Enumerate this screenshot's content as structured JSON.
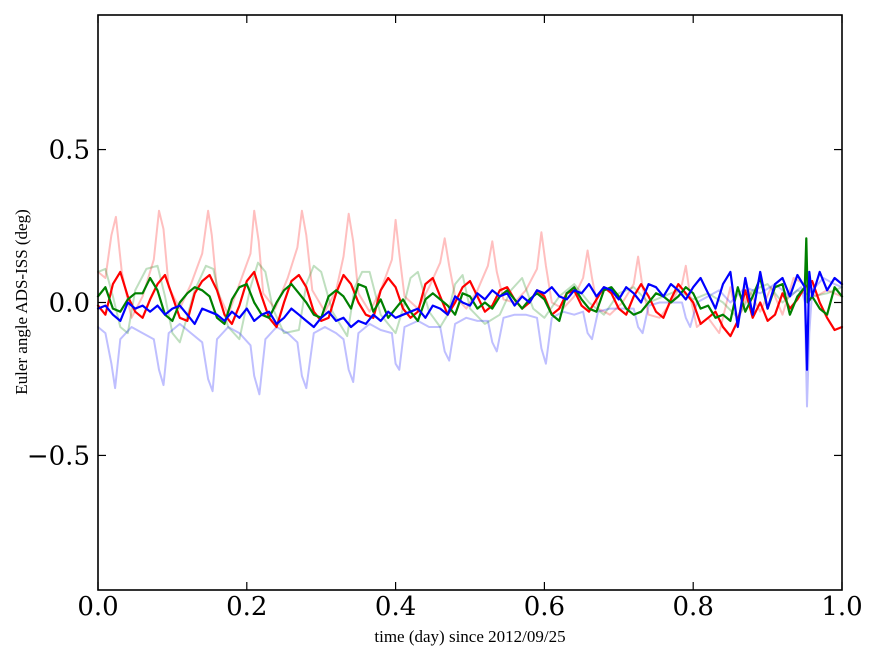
{
  "chart_data": {
    "type": "line",
    "title": "",
    "xlabel": "time (day) since 2012/09/25",
    "ylabel": "Euler angle ADS-ISS (deg)",
    "xlim": [
      0.0,
      1.0
    ],
    "ylim": [
      -0.94,
      0.94
    ],
    "xticks": [
      0.0,
      0.2,
      0.4,
      0.6,
      0.8,
      1.0
    ],
    "xtick_labels": [
      "0.0",
      "0.2",
      "0.4",
      "0.6",
      "0.8",
      "1.0"
    ],
    "yticks": [
      0.5,
      0.0,
      -0.5
    ],
    "ytick_labels": [
      "0.5",
      "0.0",
      "−0.5"
    ],
    "grid": false,
    "legend": "none",
    "series": [
      {
        "color": "#ff0000",
        "opacity": 0.25,
        "x": [
          0.0,
          0.01,
          0.018,
          0.024,
          0.032,
          0.045,
          0.06,
          0.075,
          0.082,
          0.088,
          0.095,
          0.11,
          0.125,
          0.14,
          0.148,
          0.153,
          0.16,
          0.175,
          0.19,
          0.205,
          0.21,
          0.216,
          0.222,
          0.238,
          0.255,
          0.268,
          0.274,
          0.28,
          0.288,
          0.305,
          0.32,
          0.33,
          0.337,
          0.343,
          0.35,
          0.365,
          0.38,
          0.395,
          0.4,
          0.405,
          0.412,
          0.43,
          0.445,
          0.46,
          0.466,
          0.472,
          0.48,
          0.495,
          0.51,
          0.524,
          0.53,
          0.536,
          0.545,
          0.56,
          0.575,
          0.59,
          0.596,
          0.602,
          0.61,
          0.625,
          0.64,
          0.652,
          0.658,
          0.664,
          0.672,
          0.688,
          0.705,
          0.72,
          0.726,
          0.732,
          0.74,
          0.755,
          0.77,
          0.785,
          0.79,
          0.796,
          0.805,
          0.82,
          0.835,
          0.85,
          0.86,
          0.875,
          0.89,
          0.905,
          0.92,
          0.935,
          0.95,
          0.955,
          0.965,
          0.98,
          1.0
        ],
        "y": [
          0.1,
          0.08,
          0.22,
          0.28,
          0.1,
          -0.05,
          0.02,
          0.14,
          0.3,
          0.24,
          0.05,
          -0.02,
          0.06,
          0.16,
          0.3,
          0.22,
          0.04,
          -0.04,
          0.06,
          0.16,
          0.3,
          0.2,
          0.03,
          -0.02,
          0.08,
          0.18,
          0.3,
          0.22,
          0.04,
          -0.03,
          0.04,
          0.15,
          0.29,
          0.2,
          0.03,
          -0.03,
          0.04,
          0.14,
          0.27,
          0.16,
          0.02,
          -0.02,
          0.05,
          0.13,
          0.21,
          0.12,
          0.02,
          -0.02,
          0.04,
          0.12,
          0.2,
          0.1,
          0.01,
          0.0,
          0.04,
          0.11,
          0.23,
          0.12,
          0.0,
          -0.02,
          0.02,
          0.08,
          0.17,
          0.08,
          -0.02,
          -0.04,
          0.0,
          0.06,
          0.15,
          0.05,
          -0.04,
          -0.05,
          0.0,
          0.06,
          0.12,
          0.02,
          -0.08,
          -0.05,
          -0.1,
          0.05,
          -0.06,
          0.04,
          -0.03,
          0.05,
          -0.04,
          0.08,
          0.06,
          0.04,
          0.02,
          0.04,
          0.02
        ]
      },
      {
        "color": "#008000",
        "opacity": 0.25,
        "x": [
          0.0,
          0.01,
          0.02,
          0.03,
          0.04,
          0.05,
          0.065,
          0.08,
          0.09,
          0.1,
          0.11,
          0.13,
          0.145,
          0.155,
          0.165,
          0.175,
          0.19,
          0.205,
          0.215,
          0.225,
          0.235,
          0.25,
          0.27,
          0.28,
          0.29,
          0.3,
          0.315,
          0.335,
          0.345,
          0.355,
          0.365,
          0.38,
          0.4,
          0.41,
          0.42,
          0.43,
          0.445,
          0.46,
          0.47,
          0.48,
          0.49,
          0.5,
          0.52,
          0.54,
          0.555,
          0.57,
          0.585,
          0.6,
          0.62,
          0.64,
          0.66,
          0.68,
          0.7,
          0.72,
          0.74,
          0.76,
          0.78,
          0.8,
          0.82,
          0.84,
          0.86,
          0.88,
          0.9,
          0.92,
          0.94,
          0.96,
          0.98,
          1.0
        ],
        "y": [
          0.1,
          0.11,
          0.02,
          -0.08,
          -0.1,
          0.04,
          0.11,
          0.12,
          0.02,
          -0.1,
          -0.13,
          0.04,
          0.12,
          0.11,
          0.0,
          -0.08,
          -0.12,
          0.05,
          0.13,
          0.1,
          -0.02,
          -0.1,
          -0.09,
          0.06,
          0.12,
          0.1,
          -0.03,
          -0.11,
          0.05,
          0.1,
          0.1,
          -0.04,
          -0.1,
          -0.02,
          0.08,
          0.1,
          -0.03,
          -0.08,
          -0.04,
          0.06,
          0.09,
          -0.02,
          -0.07,
          -0.04,
          0.04,
          0.08,
          -0.02,
          -0.05,
          0.02,
          0.06,
          0.0,
          -0.04,
          0.03,
          0.05,
          0.0,
          0.02,
          0.04,
          0.01,
          0.03,
          0.0,
          -0.05,
          0.04,
          0.06,
          0.0,
          0.04,
          0.02,
          0.03,
          0.05
        ]
      },
      {
        "color": "#0000ff",
        "opacity": 0.25,
        "x": [
          0.0,
          0.01,
          0.018,
          0.023,
          0.03,
          0.045,
          0.06,
          0.075,
          0.082,
          0.088,
          0.095,
          0.11,
          0.125,
          0.14,
          0.148,
          0.154,
          0.16,
          0.175,
          0.19,
          0.205,
          0.21,
          0.217,
          0.225,
          0.24,
          0.255,
          0.268,
          0.274,
          0.28,
          0.29,
          0.305,
          0.32,
          0.33,
          0.337,
          0.343,
          0.35,
          0.365,
          0.38,
          0.395,
          0.4,
          0.405,
          0.412,
          0.43,
          0.445,
          0.46,
          0.466,
          0.472,
          0.48,
          0.495,
          0.51,
          0.524,
          0.53,
          0.536,
          0.545,
          0.56,
          0.575,
          0.59,
          0.596,
          0.602,
          0.61,
          0.625,
          0.64,
          0.652,
          0.658,
          0.664,
          0.672,
          0.688,
          0.705,
          0.72,
          0.726,
          0.732,
          0.74,
          0.755,
          0.77,
          0.785,
          0.79,
          0.796,
          0.805,
          0.82,
          0.835,
          0.85,
          0.87,
          0.89,
          0.91,
          0.93,
          0.945,
          0.95,
          0.953,
          0.956,
          0.96,
          0.975,
          0.99,
          1.0
        ],
        "y": [
          -0.08,
          -0.1,
          -0.2,
          -0.28,
          -0.12,
          -0.08,
          -0.1,
          -0.12,
          -0.22,
          -0.27,
          -0.1,
          -0.07,
          -0.1,
          -0.13,
          -0.25,
          -0.29,
          -0.12,
          -0.08,
          -0.1,
          -0.14,
          -0.24,
          -0.3,
          -0.12,
          -0.08,
          -0.1,
          -0.13,
          -0.24,
          -0.28,
          -0.1,
          -0.08,
          -0.1,
          -0.12,
          -0.22,
          -0.26,
          -0.1,
          -0.07,
          -0.09,
          -0.1,
          -0.2,
          -0.22,
          -0.08,
          -0.06,
          -0.08,
          -0.08,
          -0.16,
          -0.19,
          -0.07,
          -0.05,
          -0.06,
          -0.06,
          -0.13,
          -0.16,
          -0.05,
          -0.04,
          -0.04,
          -0.05,
          -0.15,
          -0.2,
          -0.05,
          -0.03,
          -0.04,
          -0.03,
          -0.1,
          -0.12,
          -0.03,
          -0.02,
          -0.02,
          -0.02,
          -0.08,
          -0.1,
          -0.01,
          0.0,
          0.0,
          0.0,
          -0.05,
          -0.08,
          0.0,
          0.02,
          0.04,
          0.0,
          0.05,
          0.03,
          0.06,
          0.02,
          0.05,
          0.0,
          -0.34,
          -0.1,
          0.04,
          0.08,
          0.06,
          0.05
        ]
      },
      {
        "color": "#ff0000",
        "opacity": 1.0,
        "x": [
          0.0,
          0.01,
          0.02,
          0.03,
          0.04,
          0.05,
          0.06,
          0.07,
          0.08,
          0.09,
          0.1,
          0.11,
          0.12,
          0.13,
          0.14,
          0.15,
          0.16,
          0.17,
          0.18,
          0.19,
          0.2,
          0.21,
          0.22,
          0.23,
          0.24,
          0.25,
          0.26,
          0.27,
          0.28,
          0.29,
          0.3,
          0.31,
          0.32,
          0.33,
          0.34,
          0.35,
          0.36,
          0.37,
          0.38,
          0.39,
          0.4,
          0.41,
          0.42,
          0.43,
          0.44,
          0.45,
          0.46,
          0.47,
          0.48,
          0.49,
          0.5,
          0.51,
          0.52,
          0.53,
          0.54,
          0.55,
          0.56,
          0.57,
          0.58,
          0.59,
          0.6,
          0.61,
          0.62,
          0.63,
          0.64,
          0.65,
          0.66,
          0.67,
          0.68,
          0.69,
          0.7,
          0.71,
          0.72,
          0.73,
          0.74,
          0.75,
          0.76,
          0.77,
          0.78,
          0.79,
          0.8,
          0.81,
          0.82,
          0.83,
          0.84,
          0.85,
          0.86,
          0.87,
          0.88,
          0.89,
          0.9,
          0.91,
          0.92,
          0.93,
          0.94,
          0.95,
          0.96,
          0.97,
          0.98,
          0.99,
          1.0
        ],
        "y": [
          -0.01,
          -0.04,
          0.06,
          0.1,
          0.02,
          -0.03,
          -0.05,
          0.01,
          0.06,
          0.09,
          0.02,
          -0.05,
          -0.06,
          0.03,
          0.07,
          0.09,
          0.04,
          -0.04,
          -0.07,
          -0.01,
          0.07,
          0.1,
          0.02,
          -0.05,
          -0.08,
          0.0,
          0.07,
          0.09,
          0.05,
          -0.03,
          -0.06,
          -0.05,
          0.03,
          0.09,
          0.06,
          0.0,
          -0.04,
          -0.05,
          0.04,
          0.08,
          0.05,
          -0.02,
          -0.05,
          -0.03,
          0.06,
          0.08,
          0.02,
          -0.04,
          0.0,
          0.05,
          0.07,
          0.02,
          -0.03,
          -0.01,
          0.04,
          0.05,
          0.01,
          -0.02,
          0.0,
          0.04,
          0.02,
          -0.04,
          -0.02,
          0.03,
          0.04,
          -0.01,
          -0.03,
          0.01,
          0.05,
          0.03,
          -0.02,
          -0.04,
          0.02,
          0.06,
          0.02,
          -0.03,
          -0.05,
          0.01,
          0.06,
          0.03,
          0.0,
          -0.07,
          -0.05,
          -0.03,
          -0.08,
          -0.11,
          -0.06,
          0.04,
          -0.05,
          0.0,
          -0.06,
          -0.04,
          0.03,
          -0.02,
          0.01,
          0.05,
          0.07,
          0.0,
          -0.05,
          -0.09,
          -0.08
        ]
      },
      {
        "color": "#008000",
        "opacity": 1.0,
        "x": [
          0.0,
          0.01,
          0.02,
          0.03,
          0.04,
          0.05,
          0.06,
          0.07,
          0.08,
          0.09,
          0.1,
          0.11,
          0.12,
          0.13,
          0.14,
          0.15,
          0.16,
          0.17,
          0.18,
          0.19,
          0.2,
          0.21,
          0.22,
          0.23,
          0.24,
          0.25,
          0.26,
          0.27,
          0.28,
          0.29,
          0.3,
          0.31,
          0.32,
          0.33,
          0.34,
          0.35,
          0.36,
          0.37,
          0.38,
          0.39,
          0.4,
          0.41,
          0.42,
          0.43,
          0.44,
          0.45,
          0.46,
          0.47,
          0.48,
          0.49,
          0.5,
          0.51,
          0.52,
          0.53,
          0.54,
          0.55,
          0.56,
          0.57,
          0.58,
          0.59,
          0.6,
          0.61,
          0.62,
          0.63,
          0.64,
          0.65,
          0.66,
          0.67,
          0.68,
          0.69,
          0.7,
          0.71,
          0.72,
          0.73,
          0.74,
          0.75,
          0.76,
          0.77,
          0.78,
          0.79,
          0.8,
          0.81,
          0.82,
          0.83,
          0.84,
          0.85,
          0.86,
          0.87,
          0.88,
          0.89,
          0.9,
          0.91,
          0.92,
          0.93,
          0.94,
          0.95,
          0.952,
          0.954,
          0.96,
          0.97,
          0.98,
          0.99,
          1.0
        ],
        "y": [
          0.02,
          0.05,
          -0.02,
          -0.03,
          0.01,
          0.03,
          0.03,
          0.08,
          0.04,
          -0.04,
          -0.06,
          0.0,
          0.03,
          0.05,
          0.04,
          0.02,
          -0.05,
          -0.07,
          0.01,
          0.05,
          0.06,
          0.0,
          -0.04,
          -0.05,
          0.0,
          0.04,
          0.06,
          0.03,
          0.0,
          -0.04,
          -0.05,
          0.02,
          0.04,
          0.02,
          -0.02,
          0.06,
          0.05,
          -0.03,
          0.01,
          -0.05,
          -0.02,
          0.01,
          -0.03,
          -0.06,
          0.01,
          0.03,
          0.01,
          -0.01,
          -0.04,
          0.03,
          0.02,
          -0.02,
          0.0,
          -0.02,
          0.02,
          0.04,
          0.01,
          -0.02,
          0.01,
          0.03,
          0.01,
          -0.04,
          -0.06,
          0.03,
          0.05,
          0.01,
          -0.02,
          -0.03,
          0.04,
          0.05,
          0.02,
          -0.02,
          -0.04,
          -0.03,
          0.0,
          0.03,
          0.02,
          0.0,
          0.02,
          0.05,
          0.03,
          -0.02,
          -0.01,
          -0.05,
          -0.04,
          -0.06,
          0.05,
          -0.03,
          0.02,
          0.08,
          -0.02,
          0.05,
          0.06,
          -0.04,
          0.02,
          0.05,
          0.21,
          0.0,
          0.02,
          -0.02,
          -0.04,
          0.05,
          0.02
        ]
      },
      {
        "color": "#0000ff",
        "opacity": 1.0,
        "x": [
          0.0,
          0.01,
          0.02,
          0.03,
          0.04,
          0.05,
          0.06,
          0.07,
          0.08,
          0.09,
          0.1,
          0.11,
          0.12,
          0.13,
          0.14,
          0.15,
          0.16,
          0.17,
          0.18,
          0.19,
          0.2,
          0.21,
          0.22,
          0.23,
          0.24,
          0.25,
          0.26,
          0.27,
          0.28,
          0.29,
          0.3,
          0.31,
          0.32,
          0.33,
          0.34,
          0.35,
          0.36,
          0.37,
          0.38,
          0.39,
          0.4,
          0.41,
          0.42,
          0.43,
          0.44,
          0.45,
          0.46,
          0.47,
          0.48,
          0.49,
          0.5,
          0.51,
          0.52,
          0.53,
          0.54,
          0.55,
          0.56,
          0.57,
          0.58,
          0.59,
          0.6,
          0.61,
          0.62,
          0.63,
          0.64,
          0.65,
          0.66,
          0.67,
          0.68,
          0.69,
          0.7,
          0.71,
          0.72,
          0.73,
          0.74,
          0.75,
          0.76,
          0.77,
          0.78,
          0.79,
          0.8,
          0.81,
          0.82,
          0.83,
          0.84,
          0.85,
          0.86,
          0.87,
          0.88,
          0.89,
          0.9,
          0.91,
          0.92,
          0.93,
          0.94,
          0.95,
          0.953,
          0.956,
          0.96,
          0.97,
          0.98,
          0.99,
          1.0
        ],
        "y": [
          -0.02,
          -0.01,
          -0.04,
          -0.06,
          0.0,
          -0.02,
          -0.01,
          -0.03,
          -0.01,
          -0.04,
          -0.02,
          -0.01,
          -0.04,
          -0.07,
          -0.02,
          -0.03,
          -0.04,
          -0.06,
          -0.03,
          -0.05,
          -0.02,
          -0.06,
          -0.04,
          -0.03,
          -0.07,
          -0.05,
          -0.02,
          -0.04,
          -0.06,
          -0.08,
          -0.05,
          -0.03,
          -0.06,
          -0.05,
          -0.08,
          -0.06,
          -0.07,
          -0.04,
          -0.06,
          -0.03,
          -0.05,
          -0.04,
          -0.03,
          -0.02,
          -0.05,
          -0.01,
          -0.02,
          -0.04,
          0.02,
          0.0,
          -0.01,
          0.03,
          0.01,
          0.04,
          0.02,
          0.03,
          -0.01,
          0.02,
          0.0,
          0.04,
          0.03,
          0.05,
          0.02,
          0.01,
          0.04,
          0.03,
          0.06,
          0.02,
          0.05,
          0.04,
          0.01,
          0.05,
          0.03,
          0.0,
          0.06,
          0.05,
          0.02,
          0.06,
          0.04,
          0.01,
          0.05,
          0.08,
          0.03,
          -0.02,
          0.06,
          0.1,
          -0.08,
          0.08,
          -0.04,
          0.1,
          -0.02,
          0.06,
          0.08,
          0.02,
          0.09,
          0.05,
          -0.22,
          0.1,
          0.02,
          0.1,
          0.04,
          0.08,
          0.06
        ]
      }
    ]
  }
}
